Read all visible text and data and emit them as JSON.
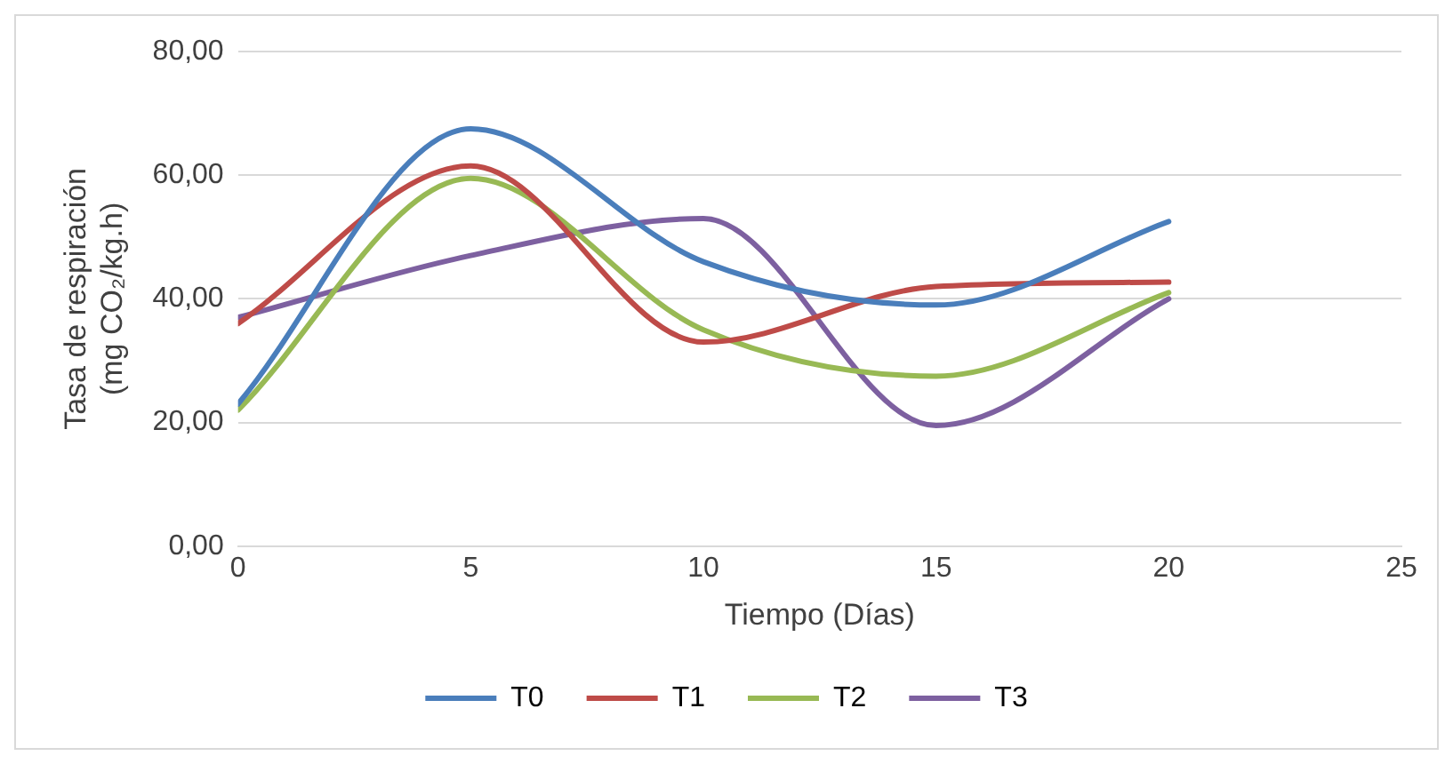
{
  "chart_data": {
    "type": "line",
    "xlabel": "Tiempo (Días)",
    "ylabel": "Tasa de respiración (mg CO₂/kg.h)",
    "x": [
      0,
      5,
      10,
      15,
      20
    ],
    "xlim": [
      0,
      25
    ],
    "xticks": [
      0,
      5,
      10,
      15,
      20,
      25
    ],
    "ylim": [
      0,
      80
    ],
    "yticks": [
      {
        "value": 0,
        "label": "0,00"
      },
      {
        "value": 20,
        "label": "20,00"
      },
      {
        "value": 40,
        "label": "40,00"
      },
      {
        "value": 60,
        "label": "60,00"
      },
      {
        "value": 80,
        "label": "80,00"
      }
    ],
    "grid": "y",
    "legend": "bottom",
    "marker": "none",
    "line_style": "solid",
    "series": [
      {
        "name": "T0",
        "color": "#4a7ebb",
        "values": [
          23,
          67.5,
          46,
          39,
          52.5
        ]
      },
      {
        "name": "T1",
        "color": "#be4b48",
        "values": [
          36,
          61.5,
          33,
          42,
          42.7
        ]
      },
      {
        "name": "T2",
        "color": "#98b954",
        "values": [
          22,
          59.5,
          35,
          27.5,
          41
        ]
      },
      {
        "name": "T3",
        "color": "#7d60a0",
        "values": [
          37,
          47,
          53,
          19.5,
          40
        ]
      }
    ]
  }
}
